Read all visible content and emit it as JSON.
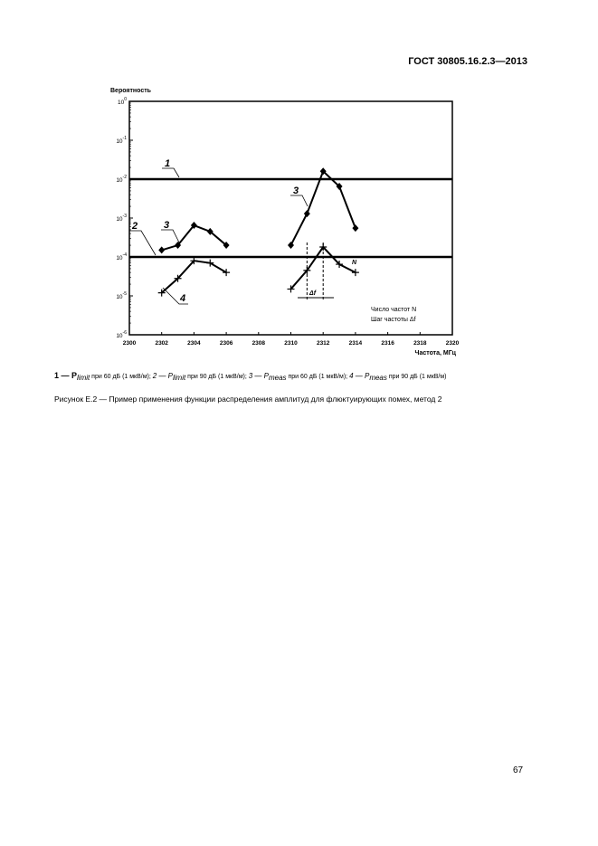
{
  "header": {
    "doc_id": "ГОСТ 30805.16.2.3—2013"
  },
  "chart_data": {
    "type": "line",
    "ylabel": "Вероятность",
    "xlabel": "Частота, МГц",
    "xlim": [
      2300,
      2320
    ],
    "ylim": [
      1e-06,
      1
    ],
    "yscale": "log",
    "x_ticks": [
      "2300",
      "2302",
      "2304",
      "2306",
      "2308",
      "2310",
      "2312",
      "2314",
      "2316",
      "2318",
      "2320"
    ],
    "y_ticks": [
      {
        "base": "10",
        "exp": "0"
      },
      {
        "base": "10",
        "exp": "-1"
      },
      {
        "base": "10",
        "exp": "-2"
      },
      {
        "base": "10",
        "exp": "-3"
      },
      {
        "base": "10",
        "exp": "-4"
      },
      {
        "base": "10",
        "exp": "-5"
      },
      {
        "base": "10",
        "exp": "-6"
      }
    ],
    "hlines": [
      {
        "label": "1",
        "value": 0.01
      },
      {
        "label": "2",
        "value": 0.0001
      }
    ],
    "series": [
      {
        "label": "3",
        "marker": "diamond",
        "segments": [
          {
            "x": [
              2302,
              2303,
              2304,
              2305,
              2306
            ],
            "y": [
              0.00015,
              0.0002,
              0.00065,
              0.00045,
              0.0002
            ]
          },
          {
            "x": [
              2310,
              2311,
              2312,
              2313,
              2314
            ],
            "y": [
              0.0002,
              0.0013,
              0.016,
              0.0065,
              0.00055
            ]
          }
        ]
      },
      {
        "label": "4",
        "marker": "plus",
        "segments": [
          {
            "x": [
              2302,
              2303,
              2304,
              2305,
              2306
            ],
            "y": [
              1.2e-05,
              2.8e-05,
              8e-05,
              7e-05,
              4e-05
            ]
          },
          {
            "x": [
              2310,
              2311,
              2312,
              2313,
              2314
            ],
            "y": [
              1.5e-05,
              4.5e-05,
              0.00018,
              6.5e-05,
              4e-05
            ]
          }
        ]
      }
    ],
    "annotations": {
      "n_label": "N",
      "df_label": "Δf",
      "note1": "Число частот  N",
      "note2": "Шаг частоты  Δf"
    }
  },
  "legend": {
    "i1": "1 — P",
    "s1": "limit",
    "t1": " при 60 дБ (1 мкВ/м); ",
    "i2": "2 — P",
    "s2": "limit",
    "t2": " при 90 дБ (1 мкВ/м); ",
    "i3": "3 — P",
    "s3": "meas",
    "t3": " при 60 дБ (1 мкВ/м); ",
    "i4": "4 — P",
    "s4": "meas",
    "t4": " при 90 дБ (1 мкВ/м)"
  },
  "caption": "Рисунок Е.2 — Пример применения функции распределения амплитуд для флюктуирующих помех, метод 2",
  "page_number": "67"
}
